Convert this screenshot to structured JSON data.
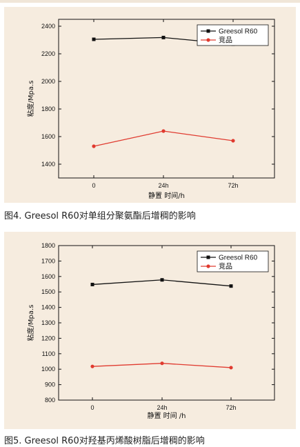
{
  "captions": [
    "图4. Greesol R60对单组分聚氨酯后增稠的影响",
    "图5. Greesol R60对羟基丙烯酸树脂后增稠的影响"
  ],
  "colors": {
    "panel_bg": "#f6ecdf",
    "series1": "#111111",
    "series2": "#e03a2f"
  },
  "chart_data": [
    {
      "type": "line",
      "categories": [
        "0",
        "24h",
        "72h"
      ],
      "series": [
        {
          "name": "Greesol R60",
          "values": [
            2305,
            2318,
            2270
          ],
          "color": "#111111",
          "marker": "square"
        },
        {
          "name": "竞品",
          "values": [
            1530,
            1640,
            1570
          ],
          "color": "#e03a2f",
          "marker": "circle"
        }
      ],
      "xlabel": "静置 时间/h",
      "ylabel": "粘度/Mpa.s",
      "ylim": [
        1300,
        2450
      ],
      "yticks": [
        1400,
        1600,
        1800,
        2000,
        2200,
        2400
      ],
      "legend": "top-right",
      "grid": false
    },
    {
      "type": "line",
      "categories": [
        "0",
        "24h",
        "72h"
      ],
      "series": [
        {
          "name": "Greesol R60",
          "values": [
            1548,
            1578,
            1538
          ],
          "color": "#111111",
          "marker": "square"
        },
        {
          "name": "竞品",
          "values": [
            1018,
            1038,
            1010
          ],
          "color": "#e03a2f",
          "marker": "circle"
        }
      ],
      "xlabel": "静置 时间 /h",
      "ylabel": "粘度/Mpa.s",
      "ylim": [
        800,
        1800
      ],
      "yticks": [
        800,
        900,
        1000,
        1100,
        1200,
        1300,
        1400,
        1500,
        1600,
        1700,
        1800
      ],
      "legend": "top-right",
      "grid": false
    }
  ]
}
